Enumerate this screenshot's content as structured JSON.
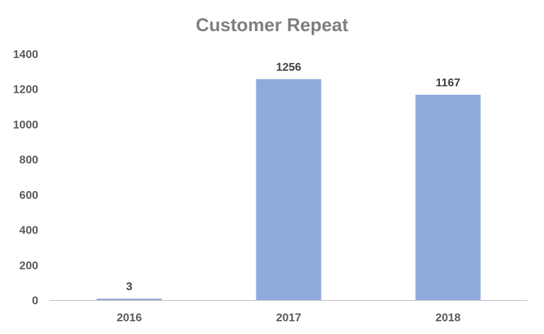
{
  "chart_data": {
    "type": "bar",
    "title": "Customer Repeat",
    "xlabel": "",
    "ylabel": "",
    "categories": [
      "2016",
      "2017",
      "2018"
    ],
    "values": [
      3,
      1256,
      1167
    ],
    "data_labels": [
      "3",
      "1256",
      "1167"
    ],
    "ylim": [
      0,
      1400
    ],
    "yticks": [
      0,
      200,
      400,
      600,
      800,
      1000,
      1200,
      1400
    ],
    "ytick_labels": [
      "0",
      "200",
      "400",
      "600",
      "800",
      "1000",
      "1200",
      "1400"
    ],
    "grid": false,
    "legend": "none",
    "bar_color": "#8faadc",
    "axis_color": "#bfbfbf"
  }
}
